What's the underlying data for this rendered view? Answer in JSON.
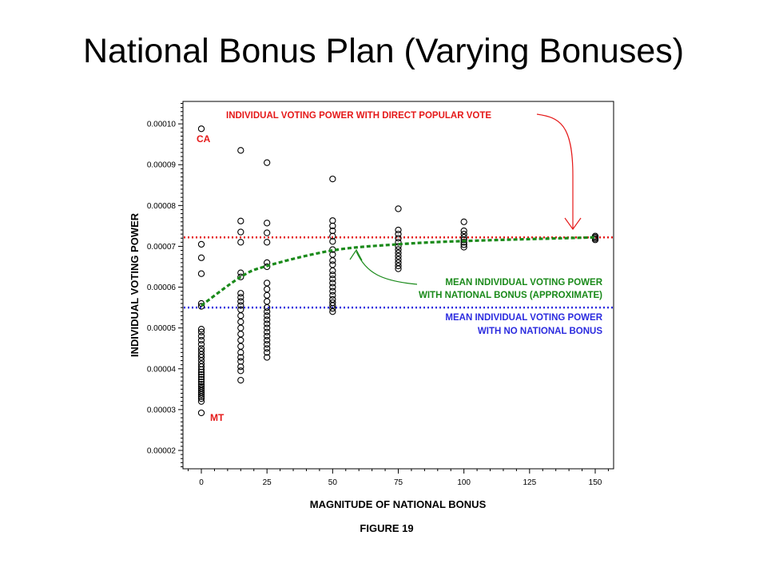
{
  "slide": {
    "title": "National Bonus Plan (Varying Bonuses)"
  },
  "figure": {
    "caption": "FIGURE 19"
  },
  "colors": {
    "direct_vote": "#e51919",
    "national_bonus_mean": "#1a8a1a",
    "no_bonus_mean": "#2b2bdf",
    "points": "#000000"
  },
  "chart_data": {
    "type": "scatter",
    "title": "",
    "xlabel": "MAGNITUDE OF NATIONAL BONUS",
    "ylabel": "INDIVIDUAL VOTING POWER",
    "xlim": [
      -7,
      157
    ],
    "ylim": [
      1.55e-05,
      0.0001055
    ],
    "x_ticks": [
      0,
      25,
      50,
      75,
      100,
      125,
      150
    ],
    "x_tick_labels": [
      "0",
      "25",
      "50",
      "75",
      "100",
      "125",
      "150"
    ],
    "y_ticks": [
      2e-05,
      3e-05,
      4e-05,
      5e-05,
      6e-05,
      7e-05,
      8e-05,
      9e-05,
      0.0001
    ],
    "y_tick_labels": [
      "0.00002",
      "0.00003",
      "0.00004",
      "0.00005",
      "0.00006",
      "0.00007",
      "0.00008",
      "0.00009",
      "0.00010"
    ],
    "grid": false,
    "series": [
      {
        "name": "",
        "x": 0,
        "values": [
          9.88e-05,
          7.05e-05,
          6.72e-05,
          6.33e-05,
          5.6e-05,
          5.53e-05,
          4.97e-05,
          4.9e-05,
          4.8e-05,
          4.7e-05,
          4.6e-05,
          4.5e-05,
          4.43e-05,
          4.35e-05,
          4.28e-05,
          4.2e-05,
          4.12e-05,
          4.05e-05,
          3.98e-05,
          3.92e-05,
          3.86e-05,
          3.8e-05,
          3.74e-05,
          3.68e-05,
          3.62e-05,
          3.57e-05,
          3.52e-05,
          3.47e-05,
          3.42e-05,
          3.37e-05,
          3.32e-05,
          3.27e-05,
          3.2e-05,
          2.92e-05
        ]
      },
      {
        "name": "",
        "x": 15,
        "values": [
          9.35e-05,
          7.62e-05,
          7.35e-05,
          7.1e-05,
          6.35e-05,
          6.25e-05,
          5.85e-05,
          5.75e-05,
          5.65e-05,
          5.55e-05,
          5.45e-05,
          5.3e-05,
          5.15e-05,
          5e-05,
          4.85e-05,
          4.7e-05,
          4.55e-05,
          4.4e-05,
          4.28e-05,
          4.18e-05,
          4.05e-05,
          3.95e-05,
          3.72e-05
        ]
      },
      {
        "name": "",
        "x": 25,
        "values": [
          9.05e-05,
          7.57e-05,
          7.33e-05,
          7.1e-05,
          6.6e-05,
          6.5e-05,
          6.1e-05,
          5.95e-05,
          5.8e-05,
          5.65e-05,
          5.5e-05,
          5.4e-05,
          5.3e-05,
          5.2e-05,
          5.1e-05,
          5e-05,
          4.9e-05,
          4.8e-05,
          4.7e-05,
          4.6e-05,
          4.5e-05,
          4.4e-05,
          4.28e-05
        ]
      },
      {
        "name": "",
        "x": 50,
        "values": [
          8.65e-05,
          7.63e-05,
          7.5e-05,
          7.38e-05,
          7.25e-05,
          7.12e-05,
          6.92e-05,
          6.8e-05,
          6.65e-05,
          6.55e-05,
          6.4e-05,
          6.3e-05,
          6.2e-05,
          6.1e-05,
          6e-05,
          5.9e-05,
          5.8e-05,
          5.7e-05,
          5.62e-05,
          5.55e-05,
          5.48e-05,
          5.4e-05
        ]
      },
      {
        "name": "",
        "x": 75,
        "values": [
          7.92e-05,
          7.4e-05,
          7.3e-05,
          7.2e-05,
          7.1e-05,
          7e-05,
          6.92e-05,
          6.84e-05,
          6.76e-05,
          6.68e-05,
          6.6e-05,
          6.52e-05,
          6.45e-05
        ]
      },
      {
        "name": "",
        "x": 100,
        "values": [
          7.6e-05,
          7.38e-05,
          7.3e-05,
          7.22e-05,
          7.16e-05,
          7.1e-05,
          7.04e-05,
          6.98e-05
        ]
      },
      {
        "name": "",
        "x": 150,
        "values": [
          7.25e-05,
          7.22e-05,
          7.19e-05,
          7.16e-05
        ]
      }
    ],
    "reference_lines": [
      {
        "key": "direct",
        "y": 7.22e-05,
        "style": "dotted",
        "color": "#e51919"
      },
      {
        "key": "no_bonus",
        "y": 5.5e-05,
        "style": "dotted",
        "color": "#2b2bdf"
      }
    ],
    "mean_curve": {
      "style": "dashed",
      "color": "#1a8a1a",
      "x": [
        0,
        15,
        25,
        50,
        75,
        100,
        150
      ],
      "y": [
        5.55e-05,
        6.25e-05,
        6.52e-05,
        6.9e-05,
        7.05e-05,
        7.13e-05,
        7.22e-05
      ]
    },
    "annotations": [
      {
        "text_lines": [
          "INDIVIDUAL VOTING POWER WITH DIRECT POPULAR VOTE"
        ],
        "color": "#e51919"
      },
      {
        "text_lines": [
          "MEAN INDIVIDUAL VOTING POWER",
          "WITH NATIONAL BONUS (APPROXIMATE)"
        ],
        "color": "#1a8a1a"
      },
      {
        "text_lines": [
          "MEAN INDIVIDUAL VOTING POWER",
          "WITH NO NATIONAL BONUS"
        ],
        "color": "#2b2bdf"
      },
      {
        "text_lines": [
          "CA"
        ],
        "color": "#e51919"
      },
      {
        "text_lines": [
          "MT"
        ],
        "color": "#e51919"
      }
    ]
  }
}
